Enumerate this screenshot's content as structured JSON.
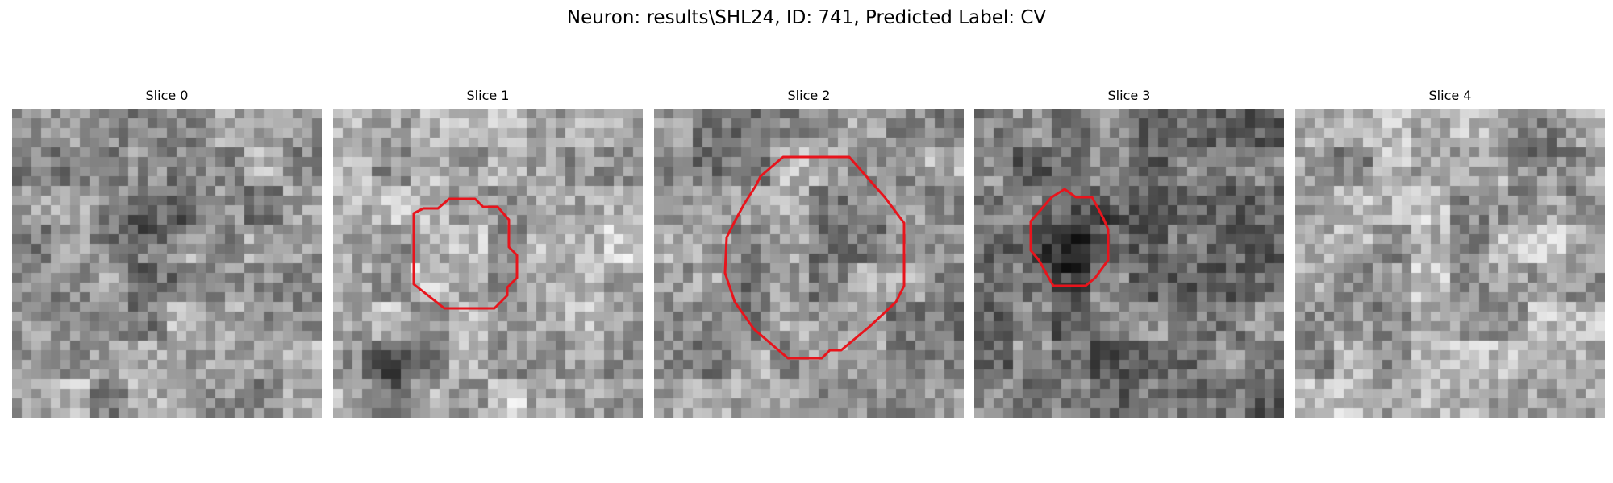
{
  "figure": {
    "title": "Neuron: results\\SHL24, ID: 741, Predicted Label: CV",
    "contour_color": "#e8141c"
  },
  "slices": [
    {
      "title": "Slice 0",
      "has_contour": false,
      "mean_gray": 155,
      "dark_spot": "center"
    },
    {
      "title": "Slice 1",
      "has_contour": true,
      "mean_gray": 175,
      "dark_spot": "bottom-left"
    },
    {
      "title": "Slice 2",
      "has_contour": true,
      "mean_gray": 150,
      "dark_spot": "none"
    },
    {
      "title": "Slice 3",
      "has_contour": true,
      "mean_gray": 120,
      "dark_spot": "center-left"
    },
    {
      "title": "Slice 4",
      "has_contour": false,
      "mean_gray": 165,
      "dark_spot": "top-right"
    }
  ]
}
